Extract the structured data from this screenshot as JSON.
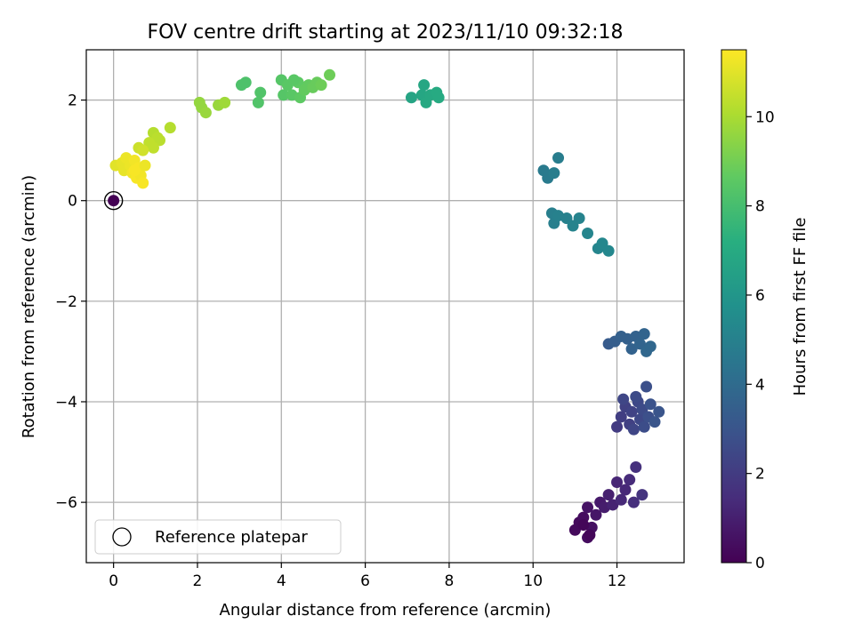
{
  "chart_data": {
    "type": "scatter",
    "title": "FOV centre drift starting at 2023/11/10 09:32:18",
    "xlabel": "Angular distance from reference (arcmin)",
    "ylabel": "Rotation from reference (arcmin)",
    "xlim": [
      -0.65,
      13.6
    ],
    "ylim": [
      -7.2,
      3.0
    ],
    "xticks": [
      0,
      2,
      4,
      6,
      8,
      10,
      12
    ],
    "yticks": [
      -6,
      -4,
      -2,
      0,
      2
    ],
    "xtick_labels": [
      "0",
      "2",
      "4",
      "6",
      "8",
      "10",
      "12"
    ],
    "ytick_labels": [
      "−6",
      "−4",
      "−2",
      "0",
      "2"
    ],
    "grid": true,
    "legend": {
      "position": "lower-left",
      "entries": [
        "Reference platepar"
      ]
    },
    "reference_point": {
      "x": 0,
      "y": 0
    },
    "colorbar": {
      "label": "Hours from first FF file",
      "colormap": "viridis",
      "range": [
        0,
        11.5
      ],
      "ticks": [
        0,
        2,
        4,
        6,
        8,
        10
      ],
      "tick_labels": [
        "0",
        "2",
        "4",
        "6",
        "8",
        "10"
      ]
    },
    "points": [
      {
        "x": 0.0,
        "y": 0.0,
        "h": 0.0
      },
      {
        "x": 11.0,
        "y": -6.55,
        "h": 0.3
      },
      {
        "x": 11.1,
        "y": -6.4,
        "h": 0.3
      },
      {
        "x": 11.2,
        "y": -6.3,
        "h": 0.4
      },
      {
        "x": 11.3,
        "y": -6.7,
        "h": 0.4
      },
      {
        "x": 11.4,
        "y": -6.5,
        "h": 0.5
      },
      {
        "x": 11.3,
        "y": -6.1,
        "h": 0.6
      },
      {
        "x": 11.5,
        "y": -6.25,
        "h": 0.7
      },
      {
        "x": 11.6,
        "y": -6.0,
        "h": 0.8
      },
      {
        "x": 11.7,
        "y": -6.1,
        "h": 0.9
      },
      {
        "x": 11.8,
        "y": -5.85,
        "h": 1.0
      },
      {
        "x": 11.9,
        "y": -6.05,
        "h": 1.1
      },
      {
        "x": 12.0,
        "y": -5.6,
        "h": 1.2
      },
      {
        "x": 12.1,
        "y": -5.95,
        "h": 1.3
      },
      {
        "x": 12.2,
        "y": -5.75,
        "h": 1.3
      },
      {
        "x": 12.3,
        "y": -5.55,
        "h": 1.4
      },
      {
        "x": 12.4,
        "y": -6.0,
        "h": 1.5
      },
      {
        "x": 12.45,
        "y": -5.3,
        "h": 1.6
      },
      {
        "x": 12.6,
        "y": -5.85,
        "h": 1.7
      },
      {
        "x": 11.2,
        "y": -6.45,
        "h": 0.2
      },
      {
        "x": 11.35,
        "y": -6.65,
        "h": 0.2
      },
      {
        "x": 12.0,
        "y": -4.5,
        "h": 2.0
      },
      {
        "x": 12.1,
        "y": -4.3,
        "h": 2.1
      },
      {
        "x": 12.2,
        "y": -4.1,
        "h": 2.2
      },
      {
        "x": 12.3,
        "y": -4.45,
        "h": 2.2
      },
      {
        "x": 12.35,
        "y": -4.2,
        "h": 2.3
      },
      {
        "x": 12.4,
        "y": -4.55,
        "h": 2.4
      },
      {
        "x": 12.5,
        "y": -4.0,
        "h": 2.5
      },
      {
        "x": 12.55,
        "y": -4.35,
        "h": 2.5
      },
      {
        "x": 12.6,
        "y": -4.15,
        "h": 2.6
      },
      {
        "x": 12.65,
        "y": -4.5,
        "h": 2.7
      },
      {
        "x": 12.7,
        "y": -3.7,
        "h": 2.8
      },
      {
        "x": 12.75,
        "y": -4.3,
        "h": 2.8
      },
      {
        "x": 12.8,
        "y": -4.05,
        "h": 2.9
      },
      {
        "x": 12.9,
        "y": -4.4,
        "h": 3.0
      },
      {
        "x": 13.0,
        "y": -4.2,
        "h": 3.0
      },
      {
        "x": 12.15,
        "y": -3.95,
        "h": 2.4
      },
      {
        "x": 12.45,
        "y": -3.9,
        "h": 2.6
      },
      {
        "x": 11.8,
        "y": -2.85,
        "h": 3.3
      },
      {
        "x": 11.95,
        "y": -2.8,
        "h": 3.4
      },
      {
        "x": 12.1,
        "y": -2.7,
        "h": 3.5
      },
      {
        "x": 12.25,
        "y": -2.75,
        "h": 3.5
      },
      {
        "x": 12.35,
        "y": -2.95,
        "h": 3.6
      },
      {
        "x": 12.45,
        "y": -2.7,
        "h": 3.6
      },
      {
        "x": 12.55,
        "y": -2.85,
        "h": 3.7
      },
      {
        "x": 12.65,
        "y": -2.65,
        "h": 3.7
      },
      {
        "x": 12.7,
        "y": -3.0,
        "h": 3.8
      },
      {
        "x": 12.8,
        "y": -2.9,
        "h": 3.8
      },
      {
        "x": 10.25,
        "y": 0.6,
        "h": 4.7
      },
      {
        "x": 10.35,
        "y": 0.45,
        "h": 4.7
      },
      {
        "x": 10.5,
        "y": 0.55,
        "h": 4.8
      },
      {
        "x": 10.6,
        "y": 0.85,
        "h": 4.8
      },
      {
        "x": 10.45,
        "y": -0.25,
        "h": 4.9
      },
      {
        "x": 10.5,
        "y": -0.45,
        "h": 4.9
      },
      {
        "x": 10.6,
        "y": -0.3,
        "h": 5.0
      },
      {
        "x": 10.8,
        "y": -0.35,
        "h": 5.0
      },
      {
        "x": 10.95,
        "y": -0.5,
        "h": 5.1
      },
      {
        "x": 11.1,
        "y": -0.35,
        "h": 5.1
      },
      {
        "x": 11.3,
        "y": -0.65,
        "h": 5.2
      },
      {
        "x": 11.55,
        "y": -0.95,
        "h": 5.2
      },
      {
        "x": 11.65,
        "y": -0.85,
        "h": 5.3
      },
      {
        "x": 11.8,
        "y": -1.0,
        "h": 5.3
      },
      {
        "x": 7.1,
        "y": 2.05,
        "h": 6.7
      },
      {
        "x": 7.35,
        "y": 2.1,
        "h": 6.8
      },
      {
        "x": 7.4,
        "y": 2.3,
        "h": 6.8
      },
      {
        "x": 7.45,
        "y": 1.95,
        "h": 6.9
      },
      {
        "x": 7.55,
        "y": 2.1,
        "h": 6.9
      },
      {
        "x": 7.7,
        "y": 2.15,
        "h": 7.0
      },
      {
        "x": 7.75,
        "y": 2.05,
        "h": 7.0
      },
      {
        "x": 3.05,
        "y": 2.3,
        "h": 8.2
      },
      {
        "x": 3.15,
        "y": 2.35,
        "h": 8.2
      },
      {
        "x": 3.45,
        "y": 1.95,
        "h": 8.3
      },
      {
        "x": 3.5,
        "y": 2.15,
        "h": 8.3
      },
      {
        "x": 4.0,
        "y": 2.4,
        "h": 8.4
      },
      {
        "x": 4.05,
        "y": 2.1,
        "h": 8.4
      },
      {
        "x": 4.15,
        "y": 2.3,
        "h": 8.5
      },
      {
        "x": 4.25,
        "y": 2.1,
        "h": 8.5
      },
      {
        "x": 4.4,
        "y": 2.35,
        "h": 8.6
      },
      {
        "x": 4.45,
        "y": 2.05,
        "h": 8.6
      },
      {
        "x": 4.55,
        "y": 2.2,
        "h": 8.7
      },
      {
        "x": 4.65,
        "y": 2.3,
        "h": 8.7
      },
      {
        "x": 4.75,
        "y": 2.25,
        "h": 8.8
      },
      {
        "x": 4.85,
        "y": 2.35,
        "h": 8.8
      },
      {
        "x": 4.95,
        "y": 2.3,
        "h": 8.9
      },
      {
        "x": 5.15,
        "y": 2.5,
        "h": 8.9
      },
      {
        "x": 4.3,
        "y": 2.4,
        "h": 8.5
      },
      {
        "x": 2.05,
        "y": 1.95,
        "h": 9.6
      },
      {
        "x": 2.1,
        "y": 1.85,
        "h": 9.6
      },
      {
        "x": 2.2,
        "y": 1.75,
        "h": 9.7
      },
      {
        "x": 2.5,
        "y": 1.9,
        "h": 9.7
      },
      {
        "x": 2.65,
        "y": 1.95,
        "h": 9.8
      },
      {
        "x": 0.95,
        "y": 1.35,
        "h": 10.2
      },
      {
        "x": 1.05,
        "y": 1.25,
        "h": 10.3
      },
      {
        "x": 1.1,
        "y": 1.2,
        "h": 10.3
      },
      {
        "x": 1.35,
        "y": 1.45,
        "h": 10.2
      },
      {
        "x": 0.85,
        "y": 1.15,
        "h": 10.4
      },
      {
        "x": 0.95,
        "y": 1.05,
        "h": 10.4
      },
      {
        "x": 0.6,
        "y": 1.05,
        "h": 10.6
      },
      {
        "x": 0.7,
        "y": 1.0,
        "h": 10.7
      },
      {
        "x": 0.05,
        "y": 0.7,
        "h": 11.0
      },
      {
        "x": 0.2,
        "y": 0.75,
        "h": 11.1
      },
      {
        "x": 0.25,
        "y": 0.6,
        "h": 11.1
      },
      {
        "x": 0.3,
        "y": 0.85,
        "h": 11.2
      },
      {
        "x": 0.4,
        "y": 0.7,
        "h": 11.2
      },
      {
        "x": 0.45,
        "y": 0.55,
        "h": 11.3
      },
      {
        "x": 0.5,
        "y": 0.8,
        "h": 11.3
      },
      {
        "x": 0.55,
        "y": 0.45,
        "h": 11.4
      },
      {
        "x": 0.6,
        "y": 0.65,
        "h": 11.4
      },
      {
        "x": 0.65,
        "y": 0.5,
        "h": 11.3
      },
      {
        "x": 0.7,
        "y": 0.35,
        "h": 11.4
      },
      {
        "x": 0.75,
        "y": 0.7,
        "h": 11.2
      },
      {
        "x": 0.5,
        "y": 0.6,
        "h": 11.4
      }
    ]
  }
}
